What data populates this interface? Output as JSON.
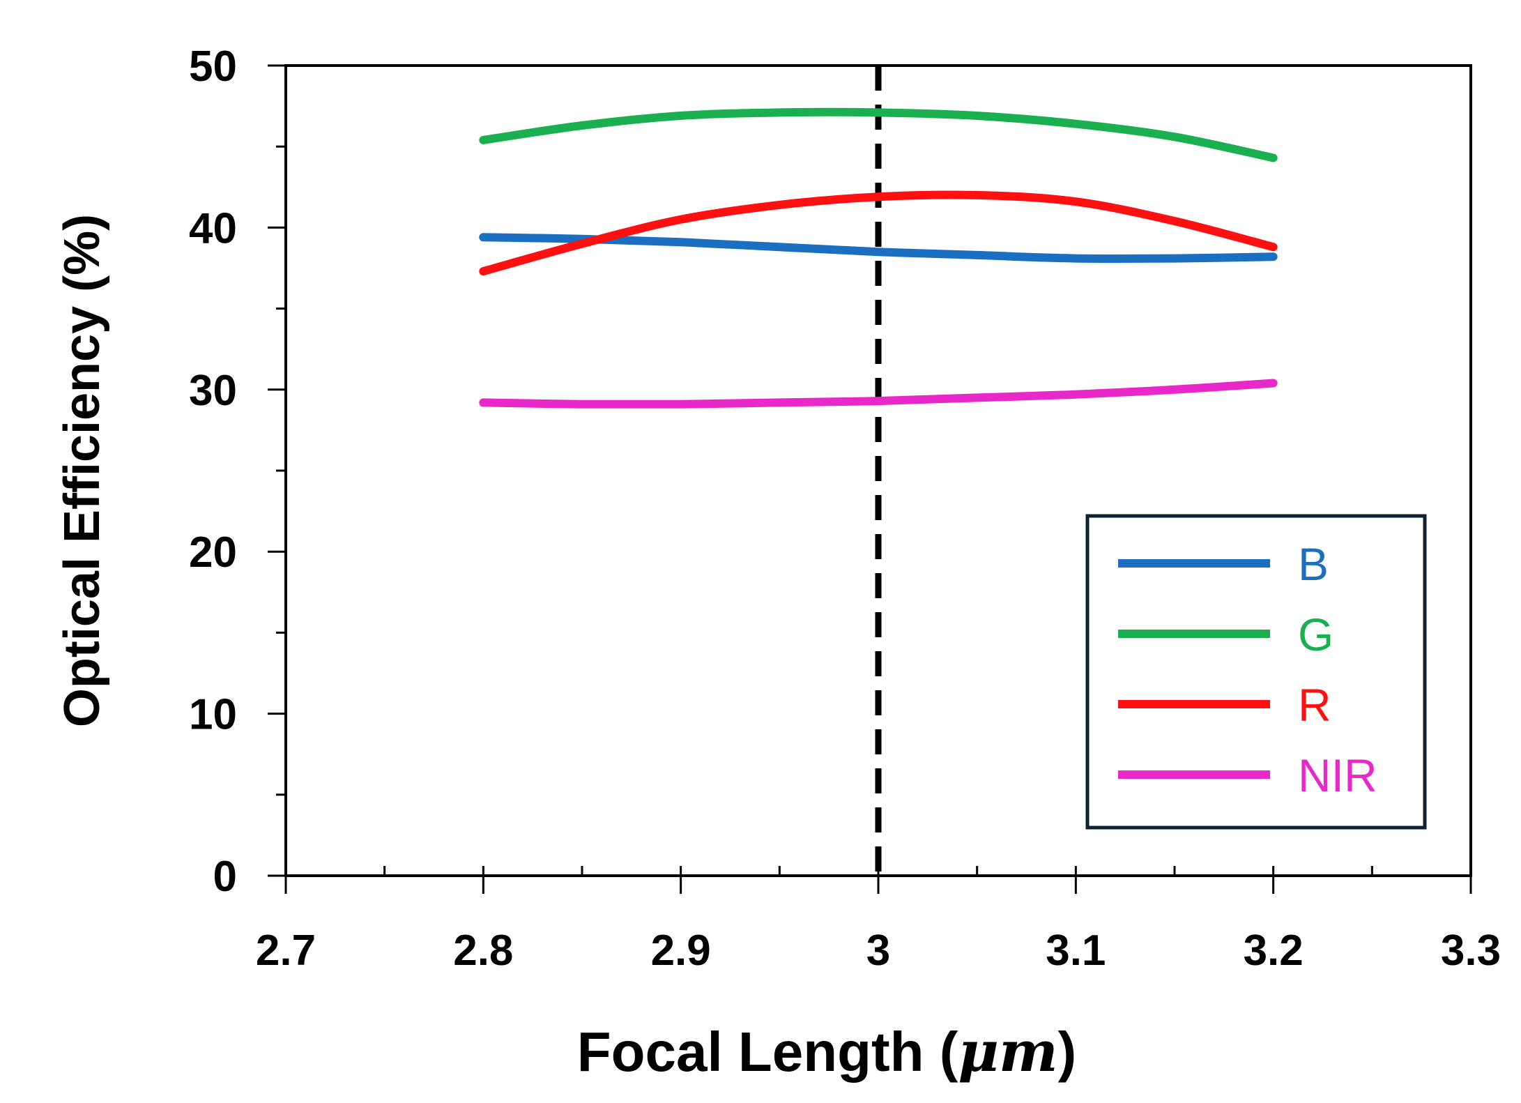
{
  "chart_data": {
    "type": "line",
    "title": "",
    "xlabel_main": "Focal Length (",
    "xlabel_unit": "μm",
    "xlabel_end": ")",
    "ylabel": "Optical Efficiency (%)",
    "xlim": [
      2.7,
      3.3
    ],
    "ylim": [
      0,
      50
    ],
    "x_ticks": [
      2.7,
      2.8,
      2.9,
      3.0,
      3.1,
      3.2,
      3.3
    ],
    "x_tick_labels": [
      "2.7",
      "2.8",
      "2.9",
      "3",
      "3.1",
      "3.2",
      "3.3"
    ],
    "x_minor_step": 0.05,
    "y_ticks": [
      0,
      10,
      20,
      30,
      40,
      50
    ],
    "y_tick_labels": [
      "0",
      "10",
      "20",
      "30",
      "40",
      "50"
    ],
    "y_minor_step": 5,
    "grid": false,
    "legend_position": "bottom-right",
    "reference_line": {
      "x": 3.0,
      "style": "dashed",
      "color": "#000000"
    },
    "series": [
      {
        "name": "B",
        "color": "#1a6fc0",
        "x": [
          2.8,
          2.85,
          2.9,
          2.95,
          3.0,
          3.05,
          3.1,
          3.15,
          3.2
        ],
        "y": [
          39.4,
          39.3,
          39.1,
          38.8,
          38.5,
          38.3,
          38.1,
          38.1,
          38.2
        ]
      },
      {
        "name": "G",
        "color": "#1ab050",
        "x": [
          2.8,
          2.85,
          2.9,
          2.95,
          3.0,
          3.05,
          3.1,
          3.15,
          3.2
        ],
        "y": [
          45.4,
          46.3,
          46.9,
          47.1,
          47.1,
          46.9,
          46.4,
          45.6,
          44.3
        ]
      },
      {
        "name": "R",
        "color": "#ff1010",
        "x": [
          2.8,
          2.85,
          2.9,
          2.95,
          3.0,
          3.05,
          3.1,
          3.15,
          3.2
        ],
        "y": [
          37.3,
          39.0,
          40.5,
          41.4,
          41.9,
          42.0,
          41.6,
          40.4,
          38.8
        ]
      },
      {
        "name": "NIR",
        "color": "#e828c8",
        "x": [
          2.8,
          2.85,
          2.9,
          2.95,
          3.0,
          3.05,
          3.1,
          3.15,
          3.2
        ],
        "y": [
          29.2,
          29.1,
          29.1,
          29.2,
          29.3,
          29.5,
          29.7,
          30.0,
          30.4
        ]
      }
    ]
  }
}
